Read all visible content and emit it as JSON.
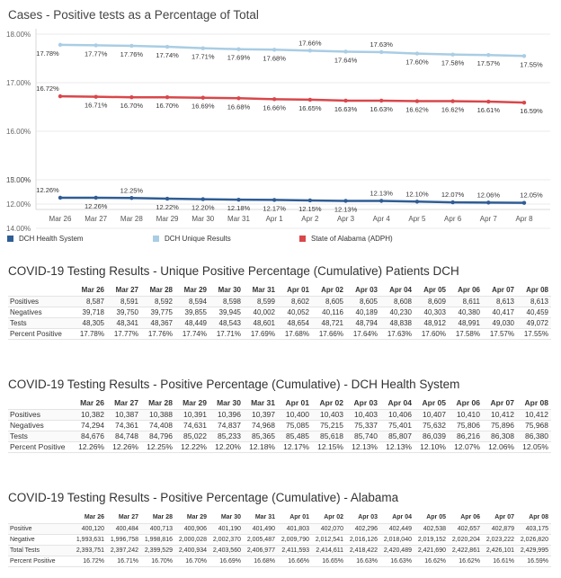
{
  "chart_data": {
    "type": "line",
    "title": "Cases - Positive tests as a Percentage of Total",
    "categories": [
      "Mar 26",
      "Mar 27",
      "Mar 28",
      "Mar 29",
      "Mar 30",
      "Mar 31",
      "Apr 1",
      "Apr 2",
      "Apr 3",
      "Apr 4",
      "Apr 5",
      "Apr 6",
      "Apr 7",
      "Apr 8"
    ],
    "y_tick_labels": [
      "12.00%",
      "13.00%",
      "14.00%",
      "15.00%",
      "16.00%",
      "17.00%",
      "18.00%"
    ],
    "y_tick_values": [
      12,
      13,
      14,
      15,
      16,
      17,
      18
    ],
    "ylim": [
      12,
      18
    ],
    "axis_break": [
      13,
      15
    ],
    "series": [
      {
        "name": "DCH Health System",
        "color": "#2f5d95",
        "values": [
          12.26,
          12.26,
          12.25,
          12.22,
          12.2,
          12.18,
          12.17,
          12.15,
          12.13,
          12.13,
          12.1,
          12.07,
          12.06,
          12.05
        ],
        "labels": [
          "12.26%",
          "12.26%",
          "12.25%",
          "12.22%",
          "12.20%",
          "12.18%",
          "12.17%",
          "12.15%",
          "12.13%",
          "12.13%",
          "12.10%",
          "12.07%",
          "12.06%",
          "12.05%"
        ],
        "label_above": [
          true,
          false,
          true,
          false,
          false,
          false,
          false,
          false,
          false,
          true,
          true,
          true,
          true,
          true
        ]
      },
      {
        "name": "DCH Unique Results",
        "color": "#a9cde4",
        "values": [
          17.78,
          17.77,
          17.76,
          17.74,
          17.71,
          17.69,
          17.68,
          17.66,
          17.64,
          17.63,
          17.6,
          17.58,
          17.57,
          17.55
        ],
        "labels": [
          "17.78%",
          "17.77%",
          "17.76%",
          "17.74%",
          "17.71%",
          "17.69%",
          "17.68%",
          "17.66%",
          "17.64%",
          "17.63%",
          "17.60%",
          "17.58%",
          "17.57%",
          "17.55%"
        ],
        "label_above": [
          false,
          false,
          false,
          false,
          false,
          false,
          false,
          true,
          false,
          true,
          false,
          false,
          false,
          false
        ]
      },
      {
        "name": "State of Alabama (ADPH)",
        "color": "#d9474a",
        "values": [
          16.72,
          16.71,
          16.7,
          16.7,
          16.69,
          16.68,
          16.66,
          16.65,
          16.63,
          16.63,
          16.62,
          16.62,
          16.61,
          16.59
        ],
        "labels": [
          "16.72%",
          "16.71%",
          "16.70%",
          "16.70%",
          "16.69%",
          "16.68%",
          "16.66%",
          "16.65%",
          "16.63%",
          "16.63%",
          "16.62%",
          "16.62%",
          "16.61%",
          "16.59%"
        ],
        "label_above": [
          true,
          false,
          false,
          false,
          false,
          false,
          false,
          false,
          false,
          false,
          false,
          false,
          false,
          false
        ]
      }
    ]
  },
  "tables": [
    {
      "title": "COVID-19 Testing Results - Unique Positive Percentage (Cumulative) Patients DCH",
      "columns": [
        "Mar 26",
        "Mar 27",
        "Mar 28",
        "Mar 29",
        "Mar 30",
        "Mar 31",
        "Apr 01",
        "Apr 02",
        "Apr 03",
        "Apr 04",
        "Apr 05",
        "Apr 06",
        "Apr 07",
        "Apr 08"
      ],
      "rows": [
        {
          "label": "Positives",
          "values": [
            "8,587",
            "8,591",
            "8,592",
            "8,594",
            "8,598",
            "8,599",
            "8,602",
            "8,605",
            "8,605",
            "8,608",
            "8,609",
            "8,611",
            "8,613",
            "8,613"
          ]
        },
        {
          "label": "Negatives",
          "values": [
            "39,718",
            "39,750",
            "39,775",
            "39,855",
            "39,945",
            "40,002",
            "40,052",
            "40,116",
            "40,189",
            "40,230",
            "40,303",
            "40,380",
            "40,417",
            "40,459"
          ]
        },
        {
          "label": "Tests",
          "values": [
            "48,305",
            "48,341",
            "48,367",
            "48,449",
            "48,543",
            "48,601",
            "48,654",
            "48,721",
            "48,794",
            "48,838",
            "48,912",
            "48,991",
            "49,030",
            "49,072"
          ]
        },
        {
          "label": "Percent Positive",
          "values": [
            "17.78%",
            "17.77%",
            "17.76%",
            "17.74%",
            "17.71%",
            "17.69%",
            "17.68%",
            "17.66%",
            "17.64%",
            "17.63%",
            "17.60%",
            "17.58%",
            "17.57%",
            "17.55%"
          ]
        }
      ]
    },
    {
      "title": "COVID-19 Testing Results - Positive Percentage (Cumulative) - DCH Health System",
      "columns": [
        "Mar 26",
        "Mar 27",
        "Mar 28",
        "Mar 29",
        "Mar 30",
        "Mar 31",
        "Apr 01",
        "Apr 02",
        "Apr 03",
        "Apr 04",
        "Apr 05",
        "Apr 06",
        "Apr 07",
        "Apr 08"
      ],
      "rows": [
        {
          "label": "Positives",
          "values": [
            "10,382",
            "10,387",
            "10,388",
            "10,391",
            "10,396",
            "10,397",
            "10,400",
            "10,403",
            "10,403",
            "10,406",
            "10,407",
            "10,410",
            "10,412",
            "10,412"
          ]
        },
        {
          "label": "Negatives",
          "values": [
            "74,294",
            "74,361",
            "74,408",
            "74,631",
            "74,837",
            "74,968",
            "75,085",
            "75,215",
            "75,337",
            "75,401",
            "75,632",
            "75,806",
            "75,896",
            "75,968"
          ]
        },
        {
          "label": "Tests",
          "values": [
            "84,676",
            "84,748",
            "84,796",
            "85,022",
            "85,233",
            "85,365",
            "85,485",
            "85,618",
            "85,740",
            "85,807",
            "86,039",
            "86,216",
            "86,308",
            "86,380"
          ]
        },
        {
          "label": "Percent Positive",
          "values": [
            "12.26%",
            "12.26%",
            "12.25%",
            "12.22%",
            "12.20%",
            "12.18%",
            "12.17%",
            "12.15%",
            "12.13%",
            "12.13%",
            "12.10%",
            "12.07%",
            "12.06%",
            "12.05%"
          ]
        }
      ]
    },
    {
      "title": "COVID-19 Testing Results - Positive Percentage (Cumulative) - Alabama",
      "columns": [
        "Mar 26",
        "Mar 27",
        "Mar 28",
        "Mar 29",
        "Mar 30",
        "Mar 31",
        "Apr 01",
        "Apr 02",
        "Apr 03",
        "Apr 04",
        "Apr 05",
        "Apr 06",
        "Apr 07",
        "Apr 08"
      ],
      "rows": [
        {
          "label": "Positive",
          "values": [
            "400,120",
            "400,484",
            "400,713",
            "400,906",
            "401,190",
            "401,490",
            "401,803",
            "402,070",
            "402,296",
            "402,449",
            "402,538",
            "402,657",
            "402,879",
            "403,175"
          ]
        },
        {
          "label": "Negative",
          "values": [
            "1,993,631",
            "1,996,758",
            "1,998,816",
            "2,000,028",
            "2,002,370",
            "2,005,487",
            "2,009,790",
            "2,012,541",
            "2,016,126",
            "2,018,040",
            "2,019,152",
            "2,020,204",
            "2,023,222",
            "2,026,820"
          ]
        },
        {
          "label": "Total Tests",
          "values": [
            "2,393,751",
            "2,397,242",
            "2,399,529",
            "2,400,934",
            "2,403,560",
            "2,406,977",
            "2,411,593",
            "2,414,611",
            "2,418,422",
            "2,420,489",
            "2,421,690",
            "2,422,861",
            "2,426,101",
            "2,429,995"
          ]
        },
        {
          "label": "Percent Positive",
          "values": [
            "16.72%",
            "16.71%",
            "16.70%",
            "16.70%",
            "16.69%",
            "16.68%",
            "16.66%",
            "16.65%",
            "16.63%",
            "16.63%",
            "16.62%",
            "16.62%",
            "16.61%",
            "16.59%"
          ]
        }
      ]
    }
  ]
}
